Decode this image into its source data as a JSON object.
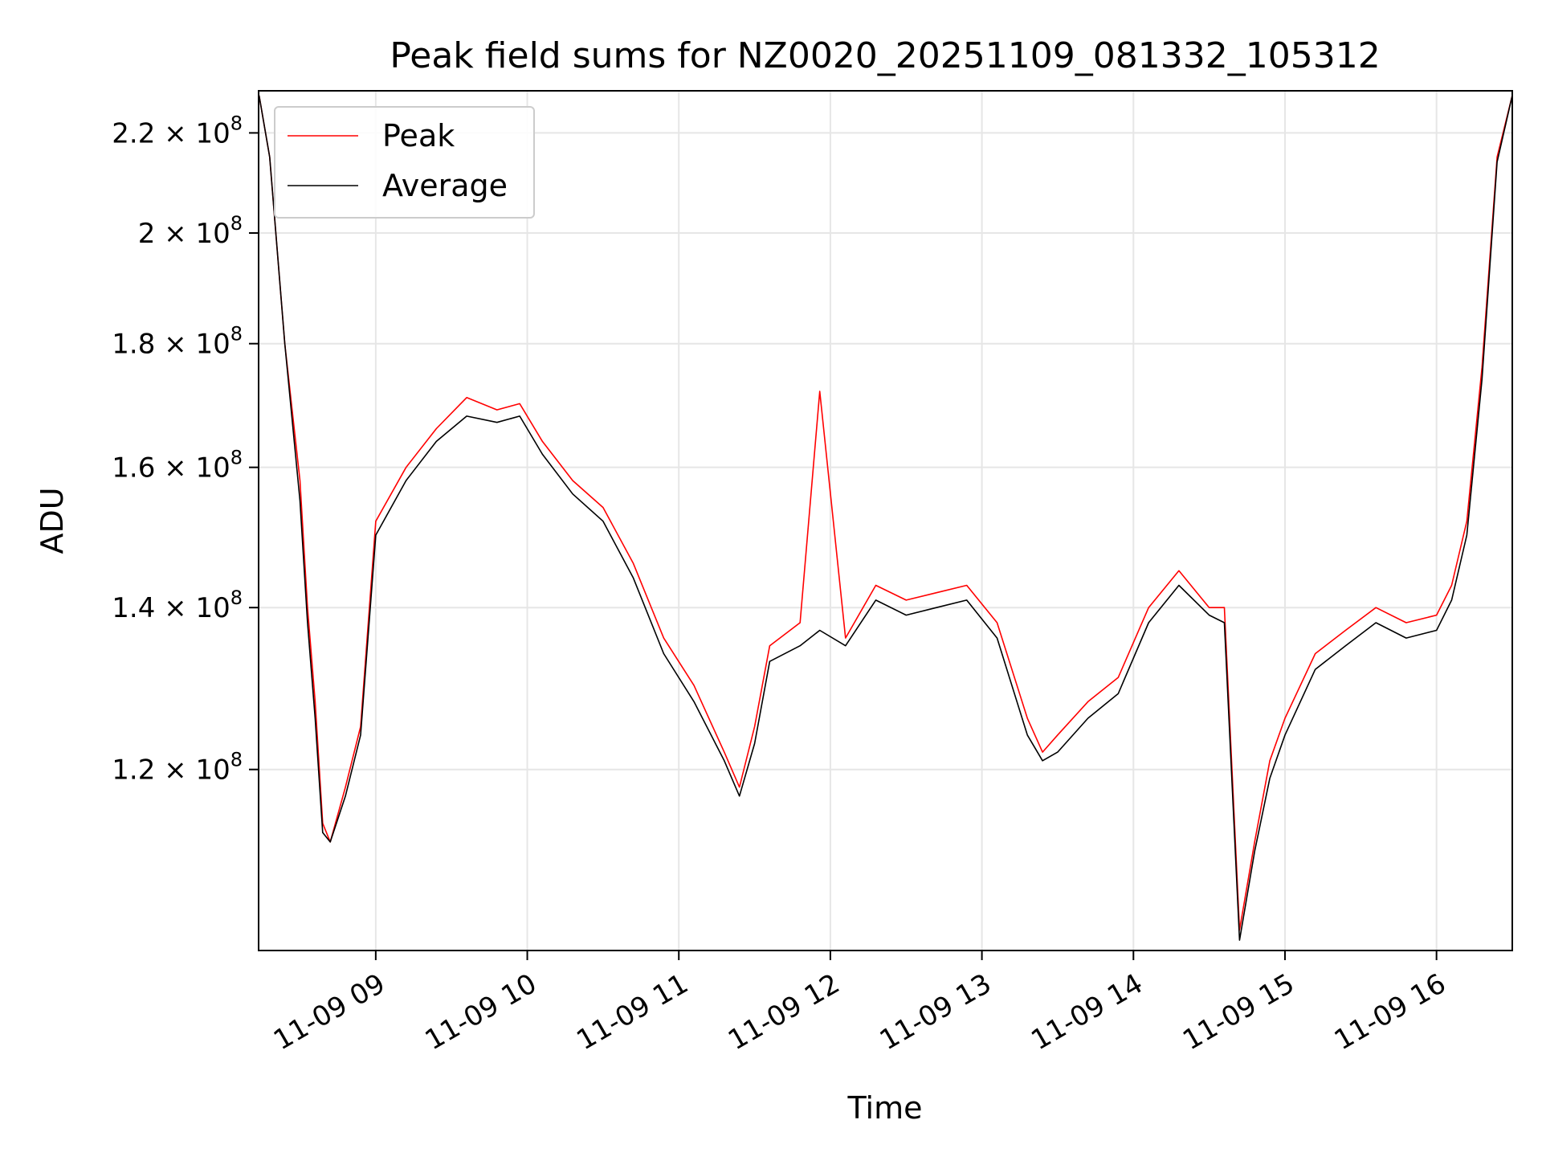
{
  "chart_data": {
    "type": "line",
    "title": "Peak field sums for NZ0020_20251109_081332_105312",
    "xlabel": "Time",
    "ylabel": "ADU",
    "yscale": "log",
    "xlim": [
      8.227,
      16.5
    ],
    "ylim": [
      101000000,
      229000000
    ],
    "grid": true,
    "legend_position": "top-left",
    "x_ticks": [
      {
        "value": 9,
        "label": "11-09 09"
      },
      {
        "value": 10,
        "label": "11-09 10"
      },
      {
        "value": 11,
        "label": "11-09 11"
      },
      {
        "value": 12,
        "label": "11-09 12"
      },
      {
        "value": 13,
        "label": "11-09 13"
      },
      {
        "value": 14,
        "label": "11-09 14"
      },
      {
        "value": 15,
        "label": "11-09 15"
      },
      {
        "value": 16,
        "label": "11-09 16"
      }
    ],
    "y_ticks": [
      {
        "value": 120000000,
        "mantissa": "1.2",
        "exponent": "8"
      },
      {
        "value": 140000000,
        "mantissa": "1.4",
        "exponent": "8"
      },
      {
        "value": 160000000,
        "mantissa": "1.6",
        "exponent": "8"
      },
      {
        "value": 180000000,
        "mantissa": "1.8",
        "exponent": "8"
      },
      {
        "value": 200000000,
        "mantissa": "2",
        "exponent": "8"
      },
      {
        "value": 220000000,
        "mantissa": "2.2",
        "exponent": "8"
      }
    ],
    "times_label_format": "11-09 HH",
    "series": [
      {
        "name": "Peak",
        "color": "#ff0000",
        "x": [
          8.23,
          8.3,
          8.4,
          8.5,
          8.55,
          8.6,
          8.65,
          8.7,
          8.8,
          8.9,
          9.0,
          9.2,
          9.4,
          9.6,
          9.8,
          9.95,
          10.1,
          10.3,
          10.5,
          10.7,
          10.9,
          11.1,
          11.3,
          11.4,
          11.5,
          11.6,
          11.8,
          11.93,
          12.1,
          12.3,
          12.5,
          12.7,
          12.9,
          13.1,
          13.3,
          13.4,
          13.5,
          13.7,
          13.9,
          14.1,
          14.3,
          14.5,
          14.6,
          14.7,
          14.8,
          14.9,
          15.0,
          15.2,
          15.4,
          15.6,
          15.8,
          16.0,
          16.1,
          16.2,
          16.3,
          16.4,
          16.5
        ],
        "y": [
          228000000,
          215000000,
          180000000,
          158000000,
          140000000,
          128000000,
          114000000,
          112000000,
          118000000,
          125000000,
          152000000,
          160000000,
          166000000,
          171000000,
          169000000,
          170000000,
          164000000,
          158000000,
          154000000,
          146000000,
          136000000,
          130000000,
          122000000,
          118000000,
          125000000,
          135000000,
          138000000,
          172000000,
          136000000,
          143000000,
          141000000,
          142000000,
          143000000,
          138000000,
          126000000,
          122000000,
          124000000,
          128000000,
          131000000,
          140000000,
          145000000,
          140000000,
          140000000,
          103000000,
          112000000,
          121000000,
          126000000,
          134000000,
          137000000,
          140000000,
          138000000,
          139000000,
          143000000,
          152000000,
          176000000,
          215000000,
          228000000
        ]
      },
      {
        "name": "Average",
        "color": "#000000",
        "x": [
          8.23,
          8.3,
          8.4,
          8.5,
          8.55,
          8.6,
          8.65,
          8.7,
          8.8,
          8.9,
          9.0,
          9.2,
          9.4,
          9.6,
          9.8,
          9.95,
          10.1,
          10.3,
          10.5,
          10.7,
          10.9,
          11.1,
          11.3,
          11.4,
          11.5,
          11.6,
          11.8,
          11.93,
          12.1,
          12.3,
          12.5,
          12.7,
          12.9,
          13.1,
          13.3,
          13.4,
          13.5,
          13.7,
          13.9,
          14.1,
          14.3,
          14.5,
          14.6,
          14.7,
          14.8,
          14.9,
          15.0,
          15.2,
          15.4,
          15.6,
          15.8,
          16.0,
          16.1,
          16.2,
          16.3,
          16.4,
          16.5
        ],
        "y": [
          228000000,
          215000000,
          180000000,
          155000000,
          138000000,
          126000000,
          113000000,
          112000000,
          117000000,
          124000000,
          150000000,
          158000000,
          164000000,
          168000000,
          167000000,
          168000000,
          162000000,
          156000000,
          152000000,
          144000000,
          134000000,
          128000000,
          121000000,
          117000000,
          123000000,
          133000000,
          135000000,
          137000000,
          135000000,
          141000000,
          139000000,
          140000000,
          141000000,
          136000000,
          124000000,
          121000000,
          122000000,
          126000000,
          129000000,
          138000000,
          143000000,
          139000000,
          138000000,
          102000000,
          111000000,
          119000000,
          124000000,
          132000000,
          135000000,
          138000000,
          136000000,
          137000000,
          141000000,
          150000000,
          174000000,
          214000000,
          228000000
        ]
      }
    ]
  }
}
